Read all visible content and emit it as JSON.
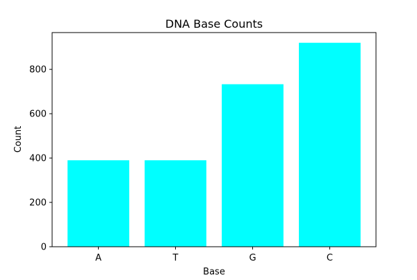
{
  "chart_data": {
    "type": "bar",
    "title": "DNA Base Counts",
    "xlabel": "Base",
    "ylabel": "Count",
    "categories": [
      "A",
      "T",
      "G",
      "C"
    ],
    "values": [
      390,
      390,
      733,
      920
    ],
    "ylim": [
      0,
      966
    ],
    "yticks": [
      0,
      200,
      400,
      600,
      800
    ],
    "grid": false,
    "legend": "none",
    "colors": {
      "bar": "#00ffff",
      "axis": "#000000",
      "background": "#ffffff"
    }
  }
}
